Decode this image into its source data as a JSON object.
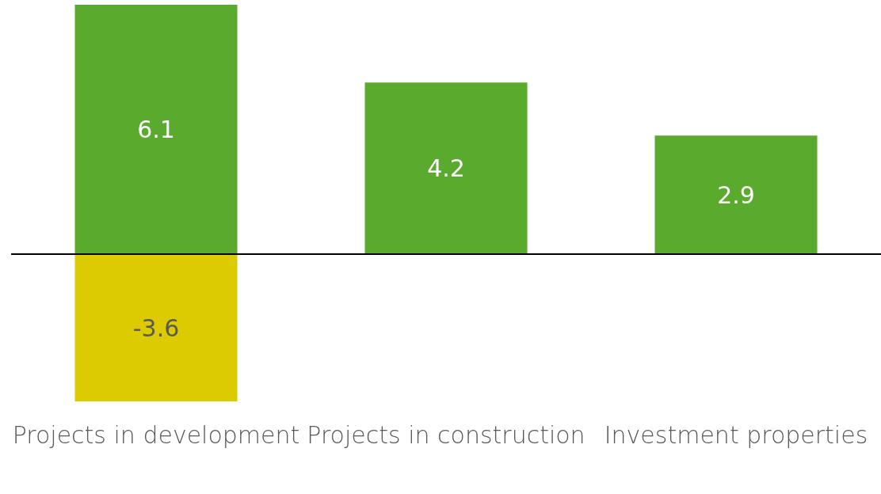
{
  "chart_data": {
    "type": "bar",
    "categories": [
      "Projects in development",
      "Projects in construction",
      "Investment properties"
    ],
    "stacked": true,
    "data_labels": true,
    "legend": false,
    "grid": false,
    "series": [
      {
        "color": "#5aaa2e",
        "values": [
          6.1,
          4.2,
          2.9
        ]
      },
      {
        "color": "#dccb00",
        "values": [
          -3.6,
          null,
          null
        ]
      }
    ]
  }
}
